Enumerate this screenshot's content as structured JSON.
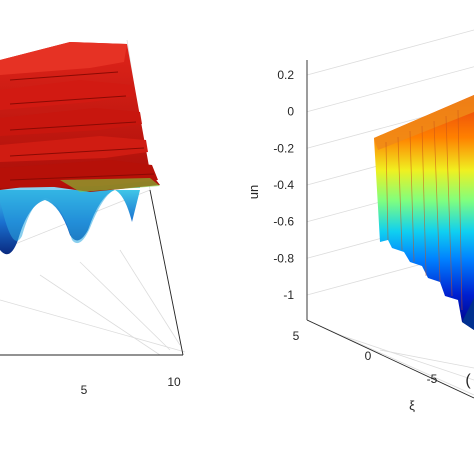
{
  "chart_data": [
    {
      "type": "surface",
      "panel": "left",
      "title": "",
      "xlabel": "",
      "ylabel": "",
      "zlabel": "",
      "x_ticks": [
        "5",
        "10"
      ],
      "colormap": "jet",
      "colors": {
        "top": "#d91a10",
        "mid": "#1fa0d8",
        "low": "#0b2c8c"
      }
    },
    {
      "type": "surface",
      "panel": "right",
      "title": "",
      "xlabel": "ξ",
      "ylabel": "",
      "zlabel": "un",
      "z_ticks": [
        "0.2",
        "0",
        "-0.2",
        "-0.4",
        "-0.6",
        "-0.8",
        "-1"
      ],
      "z_values": [
        0.2,
        0,
        -0.2,
        -0.4,
        -0.6,
        -0.8,
        -1
      ],
      "zlim": [
        -1.1,
        0.25
      ],
      "xi_ticks": [
        "5",
        "0",
        "-5"
      ],
      "xi_values": [
        5,
        0,
        -5
      ],
      "colormap": "jet",
      "grid": true,
      "panel_tag": "("
    }
  ]
}
